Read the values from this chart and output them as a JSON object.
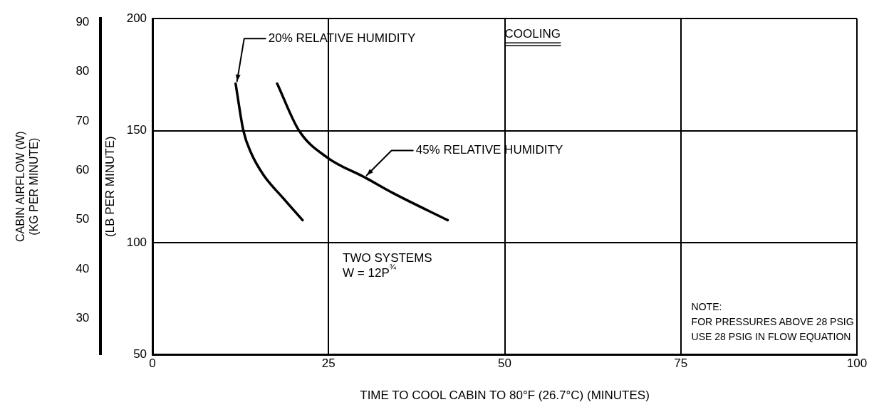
{
  "chart_data": {
    "type": "line",
    "xlabel": "TIME TO COOL CABIN TO 80°F (26.7°C) (MINUTES)",
    "ylabel": "(LB PER MINUTE)",
    "y2label": "CABIN AIRFLOW (W)\n(KG PER MINUTE)",
    "xlim": [
      0,
      100
    ],
    "xticks": [
      0,
      25,
      50,
      75,
      100
    ],
    "ylim": [
      50,
      200
    ],
    "yticks": [
      50,
      100,
      150,
      200
    ],
    "y2lim": [
      22.7,
      90.7
    ],
    "y2ticks": [
      30,
      40,
      50,
      60,
      70,
      80,
      90
    ],
    "grid": true,
    "legend": false,
    "marker": "none",
    "line_style": "solid",
    "series": [
      {
        "color": "#000000",
        "x": [
          11.8,
          12.9,
          14.0,
          15.8,
          18.5,
          21.3
        ],
        "values": [
          171,
          150,
          140,
          130,
          120,
          110
        ]
      },
      {
        "color": "#000000",
        "x": [
          17.7,
          20.8,
          24.8,
          30.2,
          34.2,
          41.9
        ],
        "values": [
          171,
          150,
          138,
          129,
          122,
          110
        ]
      }
    ],
    "annotations": [
      {
        "text": "20% RELATIVE HUMIDITY",
        "x": 12,
        "y": 172
      },
      {
        "text": "45% RELATIVE HUMIDITY",
        "x": 30.4,
        "y": 130
      },
      "COOLING",
      "TWO SYSTEMS\nW = 12P$^{¾}$",
      "NOTE:\nFOR PRESSURES ABOVE 28 PSIG\nUSE 28 PSIG IN FLOW EQUATION"
    ]
  }
}
